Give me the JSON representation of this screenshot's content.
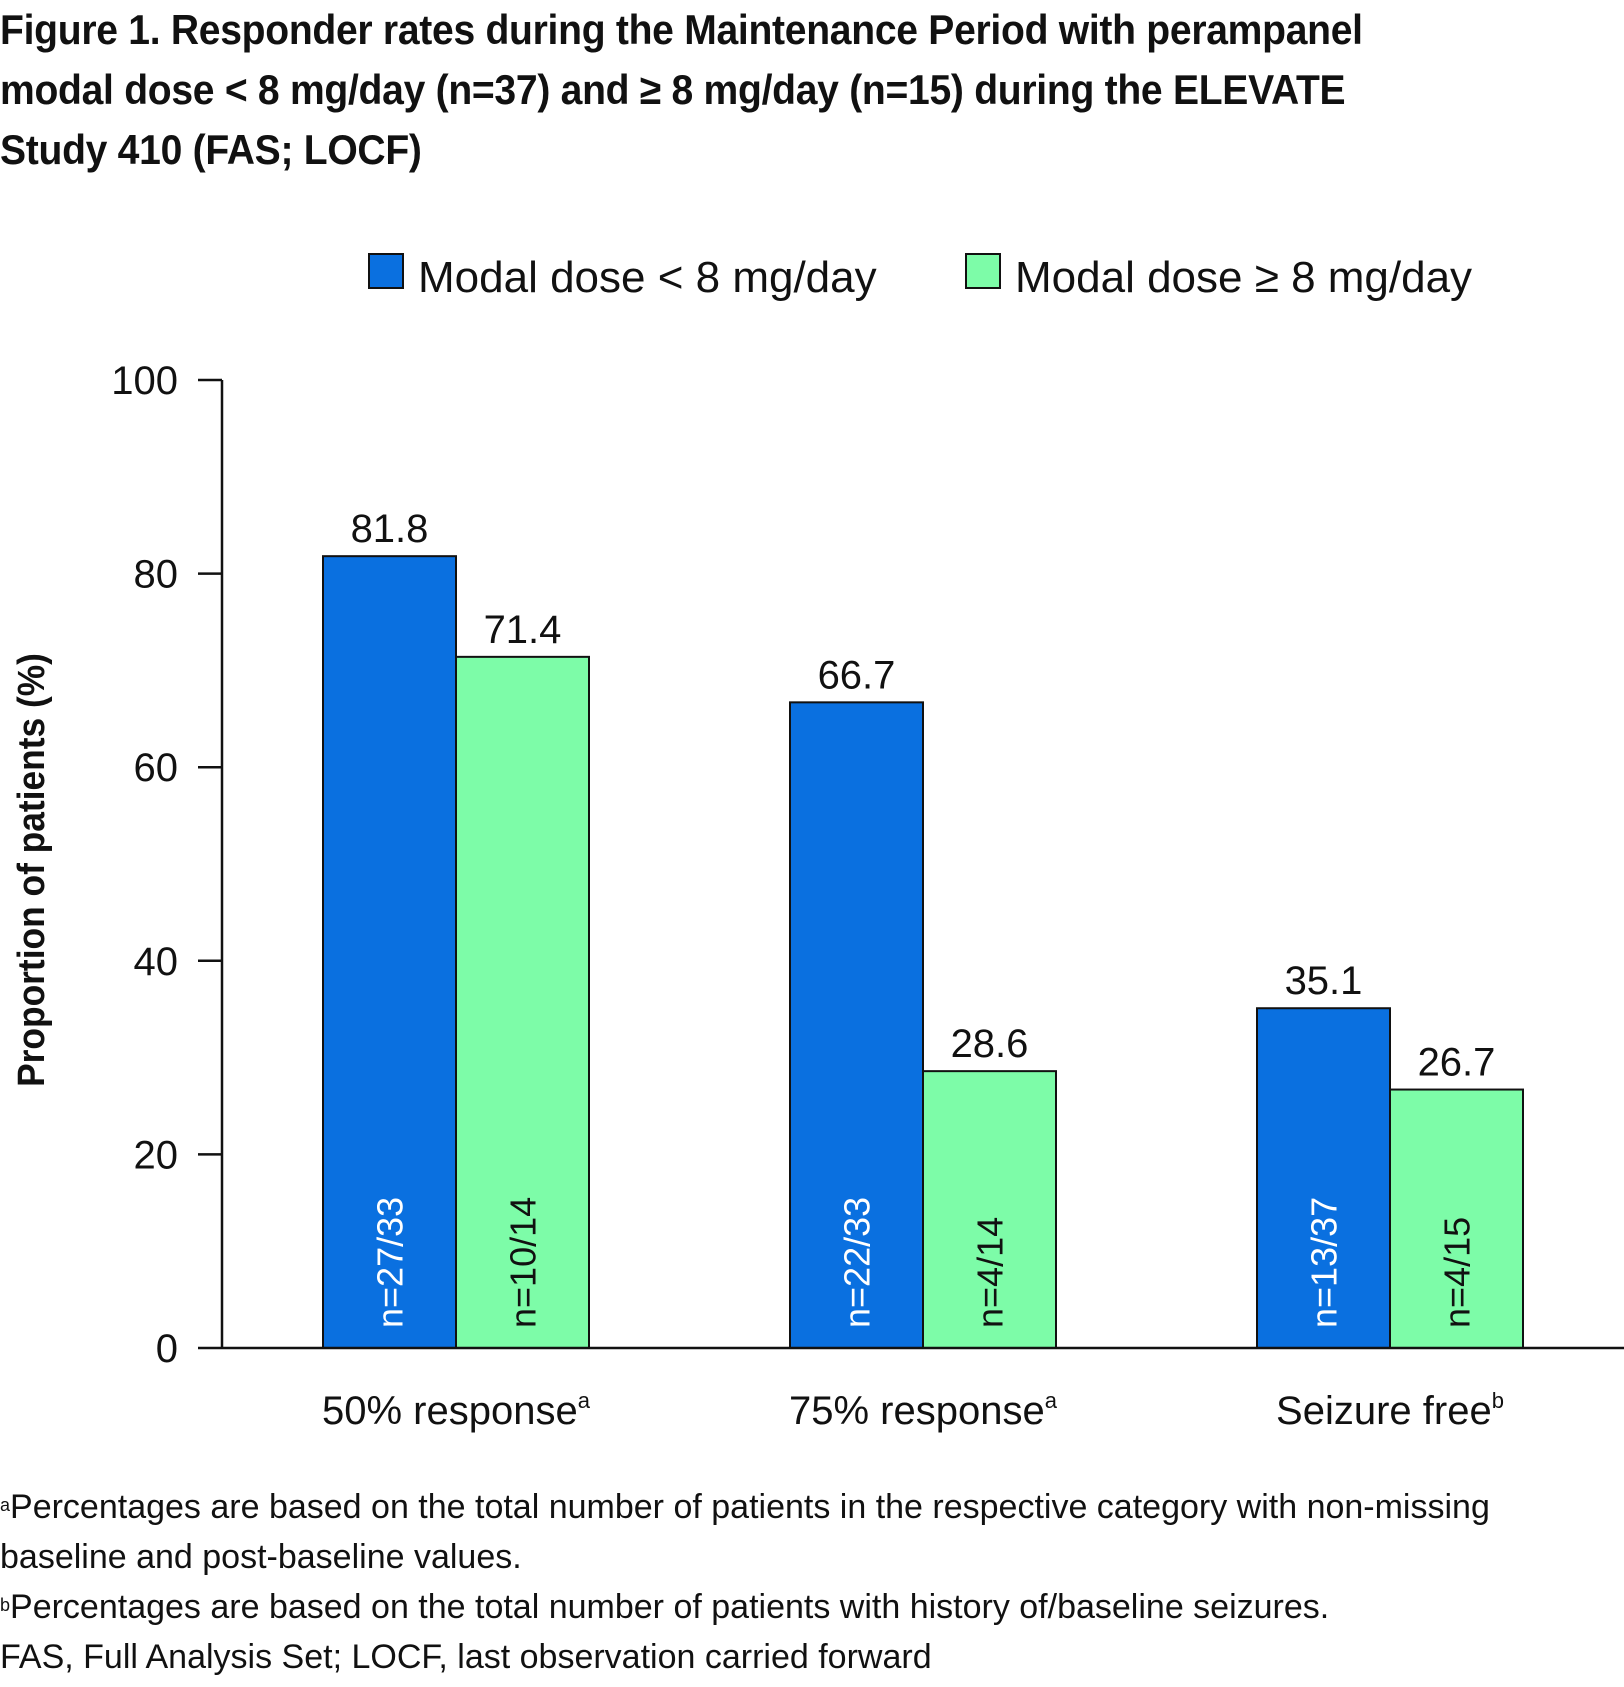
{
  "title_lines": [
    "Figure 1. Responder rates during the Maintenance Period with perampanel",
    "modal dose < 8 mg/day (n=37) and ≥ 8 mg/day (n=15) during the ELEVATE",
    "Study 410 (FAS; LOCF)"
  ],
  "chart_data": {
    "type": "bar",
    "ylabel": "Proportion of patients (%)",
    "xlabel": "",
    "ylim": [
      0,
      100
    ],
    "yticks": [
      0,
      20,
      40,
      60,
      80,
      100
    ],
    "grid": false,
    "legend_position": "top-right",
    "categories": [
      {
        "label": "50% response",
        "sup": "a"
      },
      {
        "label": "75% response",
        "sup": "a"
      },
      {
        "label": "Seizure free",
        "sup": "b"
      }
    ],
    "series": [
      {
        "name": "Modal dose < 8 mg/day",
        "color": "#0a70e0",
        "values": [
          81.8,
          66.7,
          35.1
        ],
        "value_labels": [
          "81.8",
          "66.7",
          "35.1"
        ],
        "n_labels": [
          "n=27/33",
          "n=22/33",
          "n=13/37"
        ],
        "n_label_color": "#ffffff"
      },
      {
        "name": "Modal dose ≥ 8 mg/day",
        "color": "#7dfca8",
        "values": [
          71.4,
          28.6,
          26.7
        ],
        "value_labels": [
          "71.4",
          "28.6",
          "26.7"
        ],
        "n_labels": [
          "n=10/14",
          "n=4/14",
          "n=4/15"
        ],
        "n_label_color": "#111111"
      }
    ]
  },
  "footnotes": {
    "a": {
      "marker": "a",
      "text": "Percentages are based on the total number of patients in the respective category with non-missing"
    },
    "a_cont": "baseline and post-baseline values.",
    "b": {
      "marker": "b",
      "text": "Percentages are based on the total number of patients with history of/baseline seizures."
    },
    "abbrev": "FAS, Full Analysis Set; LOCF, last observation carried forward"
  }
}
